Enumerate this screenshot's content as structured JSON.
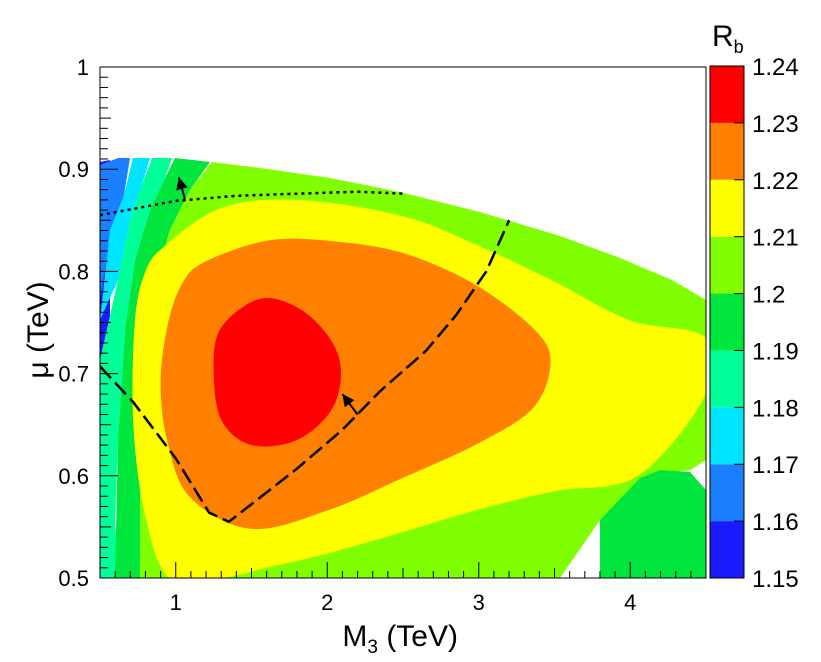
{
  "chart_data": {
    "type": "heatmap",
    "title": "",
    "xlabel": "M",
    "xlabel_sub": "3",
    "xlabel_suffix": " (TeV)",
    "ylabel": "μ (TeV)",
    "xlim": [
      0.5,
      4.5
    ],
    "ylim": [
      0.5,
      1.0
    ],
    "x_ticks": [
      1,
      2,
      3,
      4
    ],
    "x_tick_labels": [
      "1",
      "2",
      "3",
      "4"
    ],
    "y_ticks": [
      0.5,
      0.6,
      0.7,
      0.8,
      0.9,
      1.0
    ],
    "y_tick_labels": [
      "0.5",
      "0.6",
      "0.7",
      "0.8",
      "0.9",
      "1"
    ],
    "colorbar": {
      "title": "R",
      "title_sub": "b",
      "levels": [
        1.15,
        1.16,
        1.17,
        1.18,
        1.19,
        1.2,
        1.21,
        1.22,
        1.23,
        1.24
      ],
      "level_labels": [
        "1.15",
        "1.16",
        "1.17",
        "1.18",
        "1.19",
        "1.2",
        "1.21",
        "1.22",
        "1.23",
        "1.24"
      ],
      "colors": [
        "#1a1aff",
        "#1a80ff",
        "#00e5ff",
        "#00ff99",
        "#00e63c",
        "#80ff00",
        "#ffff00",
        "#ff8000",
        "#ff0000"
      ]
    },
    "contour_regions": [
      {
        "level": 1.23,
        "color": "#ff0000",
        "outline": [
          [
            1.55,
            0.773
          ],
          [
            1.8,
            0.765
          ],
          [
            2.0,
            0.738
          ],
          [
            2.09,
            0.705
          ],
          [
            2.03,
            0.665
          ],
          [
            1.8,
            0.635
          ],
          [
            1.5,
            0.63
          ],
          [
            1.3,
            0.655
          ],
          [
            1.25,
            0.705
          ],
          [
            1.3,
            0.745
          ]
        ]
      },
      {
        "level": 1.22,
        "color": "#ff8000",
        "outline": [
          [
            1.2,
            0.81
          ],
          [
            1.6,
            0.83
          ],
          [
            2.0,
            0.83
          ],
          [
            2.5,
            0.818
          ],
          [
            3.0,
            0.785
          ],
          [
            3.4,
            0.738
          ],
          [
            3.47,
            0.705
          ],
          [
            3.35,
            0.665
          ],
          [
            3.0,
            0.632
          ],
          [
            2.5,
            0.598
          ],
          [
            2.0,
            0.566
          ],
          [
            1.5,
            0.548
          ],
          [
            1.1,
            0.578
          ],
          [
            0.95,
            0.63
          ],
          [
            0.9,
            0.69
          ],
          [
            0.95,
            0.75
          ],
          [
            1.05,
            0.79
          ]
        ]
      },
      {
        "level": 1.21,
        "color": "#ffff00",
        "outline": [
          [
            0.93,
            0.825
          ],
          [
            1.3,
            0.862
          ],
          [
            1.8,
            0.87
          ],
          [
            2.5,
            0.854
          ],
          [
            3.0,
            0.825
          ],
          [
            3.5,
            0.79
          ],
          [
            4.0,
            0.752
          ],
          [
            4.5,
            0.735
          ],
          [
            4.5,
            0.68
          ],
          [
            4.05,
            0.6
          ],
          [
            3.5,
            0.585
          ],
          [
            3.0,
            0.567
          ],
          [
            2.5,
            0.545
          ],
          [
            2.0,
            0.524
          ],
          [
            1.6,
            0.51
          ],
          [
            1.3,
            0.5
          ],
          [
            0.96,
            0.5
          ],
          [
            0.8,
            0.56
          ],
          [
            0.72,
            0.65
          ],
          [
            0.73,
            0.75
          ],
          [
            0.8,
            0.8
          ]
        ]
      }
    ],
    "series": [
      {
        "name": "dashed curve",
        "style": "dashed",
        "x": [
          0.5,
          0.72,
          1.0,
          1.22,
          1.35,
          1.55,
          1.8,
          2.1,
          2.35,
          2.65,
          2.85,
          3.05,
          3.2
        ],
        "y": [
          0.707,
          0.672,
          0.617,
          0.564,
          0.555,
          0.578,
          0.607,
          0.645,
          0.683,
          0.722,
          0.757,
          0.8,
          0.85
        ]
      },
      {
        "name": "dotted curve",
        "style": "dotted",
        "x": [
          0.5,
          0.75,
          1.0,
          1.4,
          1.8,
          2.2,
          2.5
        ],
        "y": [
          0.855,
          0.862,
          0.869,
          0.874,
          0.876,
          0.878,
          0.876
        ]
      }
    ],
    "arrows": [
      {
        "name": "arrow-dotted",
        "from": [
          1.06,
          0.871
        ],
        "to": [
          1.02,
          0.892
        ]
      },
      {
        "name": "arrow-dashed",
        "from": [
          2.2,
          0.66
        ],
        "to": [
          2.1,
          0.68
        ]
      }
    ]
  }
}
